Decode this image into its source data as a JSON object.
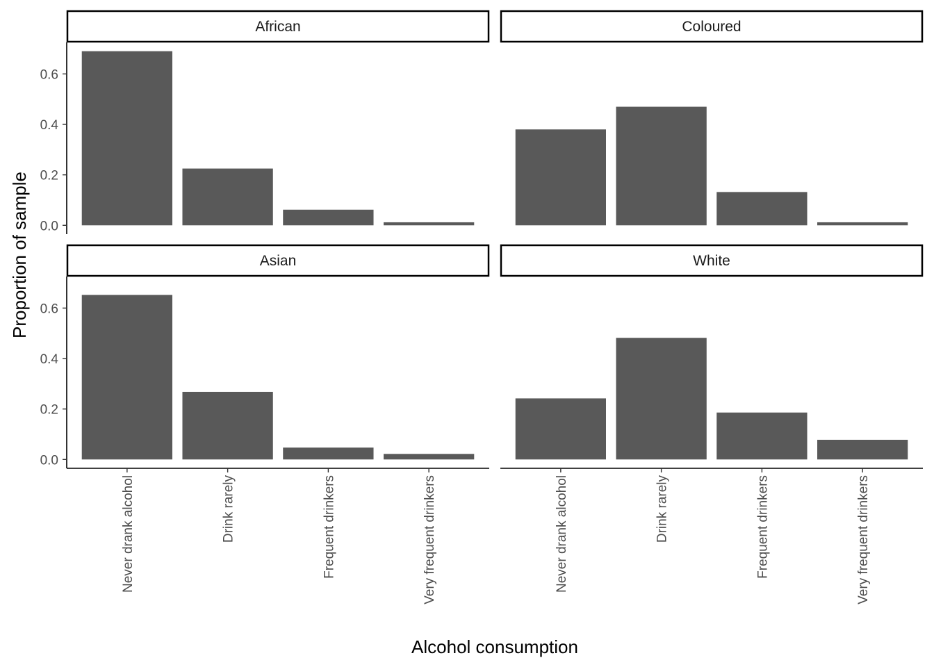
{
  "chart_data": {
    "type": "bar",
    "xlabel": "Alcohol consumption",
    "ylabel": "Proportion of sample",
    "ylim": [
      0,
      0.7
    ],
    "yticks": [
      0.0,
      0.2,
      0.4,
      0.6
    ],
    "ytick_labels": [
      "0.0",
      "0.2",
      "0.4",
      "0.6"
    ],
    "categories": [
      "Never drank alcohol",
      "Drink rarely",
      "Frequent drinkers",
      "Very frequent drinkers"
    ],
    "bar_color": "#595959",
    "grid": false,
    "facets": [
      {
        "name": "African",
        "values": [
          0.69,
          0.225,
          0.062,
          0.012
        ]
      },
      {
        "name": "Coloured",
        "values": [
          0.38,
          0.47,
          0.132,
          0.012
        ]
      },
      {
        "name": "Asian",
        "values": [
          0.652,
          0.268,
          0.047,
          0.022
        ]
      },
      {
        "name": "White",
        "values": [
          0.242,
          0.482,
          0.186,
          0.078
        ]
      }
    ]
  }
}
